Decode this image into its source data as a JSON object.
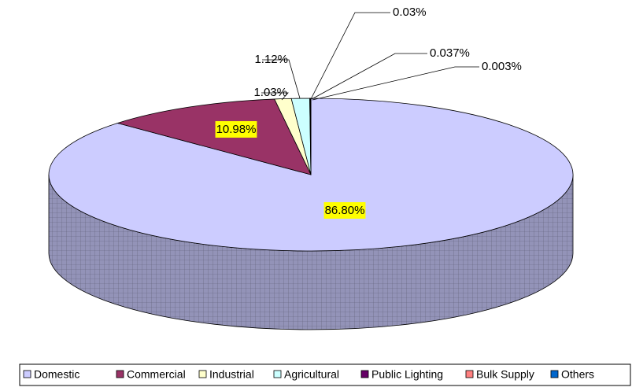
{
  "chart_data": {
    "type": "pie",
    "categories": [
      "Domestic",
      "Commercial",
      "Industrial",
      "Agricultural",
      "Public Lighting",
      "Bulk Supply",
      "Others"
    ],
    "values": [
      86.8,
      10.98,
      1.03,
      1.12,
      0.03,
      0.037,
      0.003
    ],
    "value_labels": [
      "86.80%",
      "10.98%",
      "1.03%",
      "1.12%",
      "0.03%",
      "0.037%",
      "0.003%"
    ],
    "colors": [
      "#ccccff",
      "#993366",
      "#ffffcc",
      "#ccffff",
      "#660066",
      "#ff8080",
      "#0066cc"
    ],
    "legend": "bottom"
  }
}
